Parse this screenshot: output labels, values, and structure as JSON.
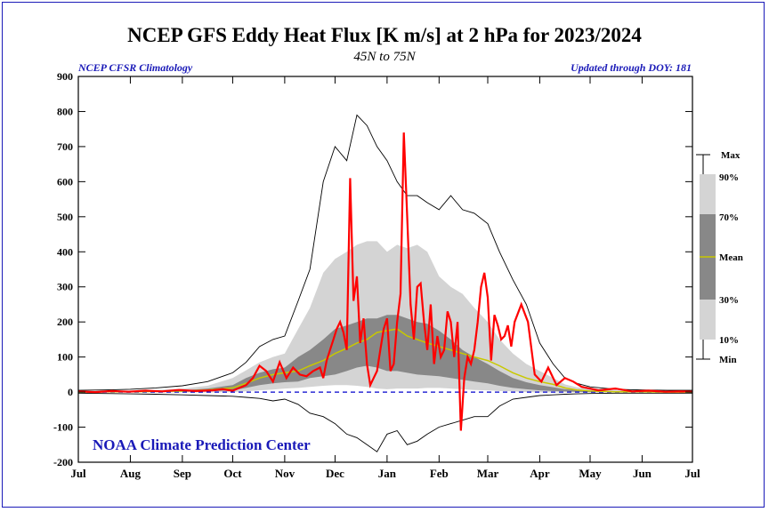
{
  "chart_data": {
    "type": "area",
    "title": "NCEP GFS Eddy Heat Flux [K m/s] at 2 hPa for 2023/2024",
    "subtitle": "45N to 75N",
    "note_left": "NCEP CFSR Climatology",
    "note_right": "Updated through DOY: 181",
    "credit": "NOAA Climate Prediction Center",
    "ylim": [
      -200,
      900
    ],
    "yticks": [
      -200,
      -100,
      0,
      100,
      200,
      300,
      400,
      500,
      600,
      700,
      800,
      900
    ],
    "month_labels": [
      "Jul",
      "Aug",
      "Sep",
      "Oct",
      "Nov",
      "Dec",
      "Jan",
      "Feb",
      "Mar",
      "Apr",
      "May",
      "Jun",
      "Jul"
    ],
    "month_days": [
      0,
      31,
      62,
      92,
      123,
      153,
      184,
      215,
      244,
      275,
      305,
      336,
      366
    ],
    "xlim": [
      0,
      366
    ],
    "legend": {
      "labels": [
        "Max",
        "90%",
        "70%",
        "Mean",
        "30%",
        "10%",
        "Min"
      ]
    },
    "colors": {
      "frame": "#1a1ab8",
      "title": "#000000",
      "blue_text": "#1a1ab8",
      "band_outer": "#d4d4d4",
      "band_inner": "#888888",
      "mean_line": "#c8c800",
      "current_line": "#ff0000",
      "zero_line": "#0000cc",
      "minmax_line": "#000000"
    },
    "climatology": {
      "x": [
        0,
        15,
        31,
        46,
        62,
        77,
        92,
        100,
        108,
        116,
        123,
        131,
        138,
        146,
        153,
        160,
        166,
        172,
        178,
        184,
        190,
        196,
        202,
        208,
        215,
        222,
        229,
        236,
        244,
        251,
        259,
        267,
        275,
        283,
        290,
        297,
        305,
        320,
        336,
        351,
        366
      ],
      "max": [
        5,
        6,
        8,
        12,
        18,
        30,
        55,
        85,
        130,
        150,
        160,
        260,
        350,
        600,
        700,
        660,
        790,
        760,
        700,
        660,
        600,
        560,
        560,
        540,
        520,
        560,
        520,
        510,
        480,
        400,
        320,
        250,
        140,
        80,
        40,
        25,
        15,
        8,
        6,
        5,
        5
      ],
      "p90": [
        2,
        3,
        4,
        6,
        10,
        18,
        40,
        62,
        85,
        100,
        110,
        180,
        240,
        340,
        380,
        400,
        420,
        430,
        430,
        400,
        420,
        410,
        420,
        400,
        330,
        300,
        280,
        240,
        200,
        150,
        110,
        80,
        60,
        40,
        22,
        14,
        8,
        5,
        4,
        3,
        2
      ],
      "p70": [
        1,
        2,
        2,
        3,
        5,
        10,
        20,
        40,
        55,
        65,
        70,
        100,
        120,
        150,
        180,
        190,
        200,
        210,
        210,
        220,
        220,
        210,
        200,
        195,
        175,
        150,
        120,
        100,
        80,
        60,
        40,
        28,
        20,
        14,
        8,
        6,
        3,
        2,
        2,
        1,
        1
      ],
      "mean": [
        0,
        1,
        1,
        2,
        3,
        6,
        12,
        25,
        40,
        50,
        55,
        60,
        75,
        90,
        110,
        125,
        140,
        150,
        170,
        175,
        180,
        160,
        150,
        140,
        130,
        120,
        110,
        100,
        90,
        75,
        55,
        40,
        30,
        22,
        12,
        6,
        3,
        1,
        1,
        0,
        0
      ],
      "p30": [
        0,
        0,
        0,
        1,
        1,
        2,
        5,
        12,
        20,
        25,
        28,
        30,
        40,
        45,
        50,
        60,
        70,
        75,
        70,
        60,
        60,
        55,
        50,
        48,
        45,
        40,
        35,
        30,
        25,
        18,
        12,
        8,
        5,
        3,
        2,
        1,
        0,
        0,
        0,
        0,
        0
      ],
      "p10": [
        -1,
        -1,
        -1,
        -1,
        -1,
        -1,
        0,
        2,
        5,
        7,
        10,
        12,
        15,
        18,
        20,
        20,
        18,
        15,
        10,
        8,
        10,
        10,
        10,
        12,
        12,
        10,
        8,
        6,
        5,
        3,
        2,
        0,
        -1,
        -1,
        -1,
        -1,
        -1,
        -1,
        -1,
        -1,
        -1
      ],
      "min": [
        -3,
        -4,
        -5,
        -6,
        -8,
        -10,
        -12,
        -15,
        -18,
        -25,
        -20,
        -35,
        -60,
        -70,
        -90,
        -120,
        -130,
        -150,
        -170,
        -120,
        -110,
        -150,
        -140,
        -120,
        -100,
        -90,
        -80,
        -70,
        -70,
        -40,
        -20,
        -15,
        -10,
        -8,
        -6,
        -5,
        -4,
        -3,
        -3,
        -3,
        -3
      ]
    },
    "series": [
      {
        "name": "2023/2024",
        "x": [
          0,
          10,
          20,
          30,
          40,
          50,
          60,
          70,
          80,
          86,
          92,
          96,
          100,
          104,
          108,
          112,
          116,
          120,
          124,
          128,
          132,
          136,
          140,
          144,
          146,
          148,
          150,
          152,
          154,
          156,
          158,
          160,
          162,
          164,
          166,
          168,
          170,
          172,
          174,
          176,
          178,
          180,
          182,
          184,
          186,
          188,
          190,
          192,
          194,
          196,
          198,
          200,
          202,
          204,
          206,
          208,
          210,
          212,
          214,
          216,
          218,
          220,
          222,
          224,
          226,
          228,
          230,
          232,
          234,
          236,
          238,
          240,
          242,
          244,
          246,
          248,
          250,
          252,
          254,
          256,
          258,
          260,
          264,
          268,
          272,
          276,
          280,
          285,
          290,
          295,
          300,
          310,
          320,
          330,
          340,
          350,
          360,
          366
        ],
        "values": [
          2,
          0,
          3,
          1,
          4,
          2,
          6,
          3,
          5,
          8,
          4,
          12,
          20,
          40,
          75,
          60,
          30,
          85,
          40,
          70,
          50,
          45,
          60,
          70,
          40,
          90,
          120,
          150,
          180,
          200,
          170,
          120,
          610,
          260,
          330,
          140,
          210,
          80,
          20,
          40,
          60,
          120,
          180,
          210,
          60,
          80,
          200,
          280,
          740,
          500,
          250,
          150,
          300,
          310,
          200,
          120,
          250,
          80,
          160,
          100,
          120,
          230,
          200,
          100,
          200,
          -110,
          40,
          100,
          80,
          120,
          200,
          300,
          340,
          270,
          90,
          220,
          190,
          150,
          160,
          190,
          130,
          200,
          250,
          200,
          50,
          30,
          70,
          20,
          40,
          30,
          15,
          5,
          10,
          2,
          4,
          1,
          2,
          1
        ]
      }
    ]
  }
}
